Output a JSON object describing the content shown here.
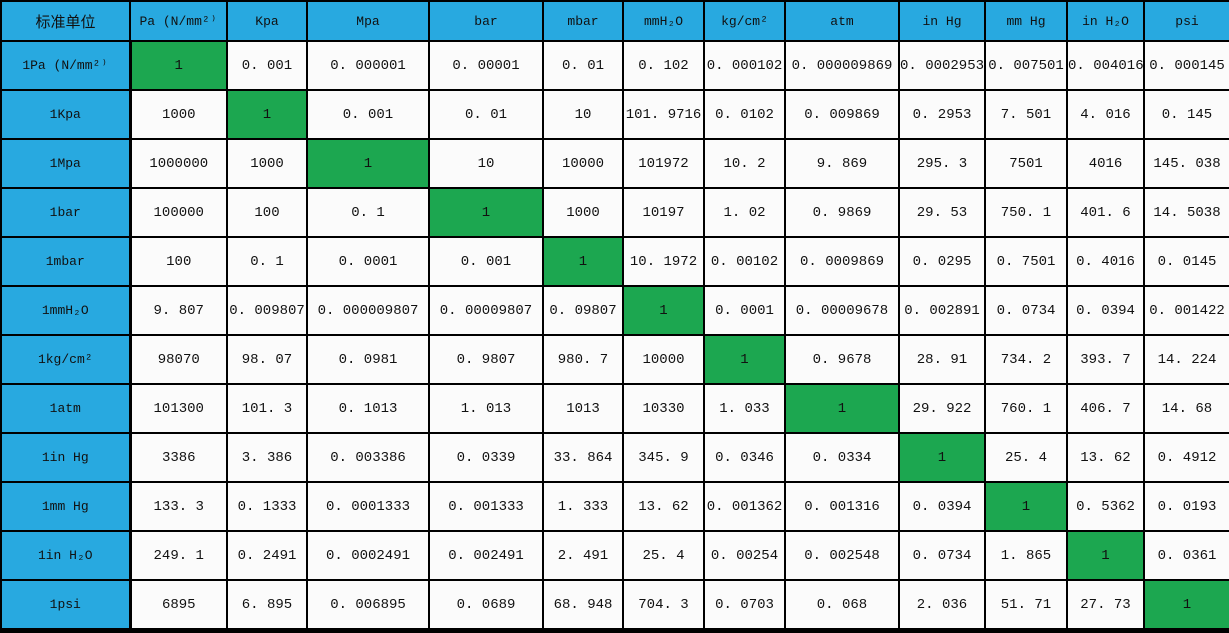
{
  "chart_data": {
    "type": "table",
    "columns": [
      "标准单位",
      "Pa (N/mm²⁾",
      "Kpa",
      "Mpa",
      "bar",
      "mbar",
      "mmH₂O",
      "kg/cm²",
      "atm",
      "in Hg",
      "mm Hg",
      "in H₂O",
      "psi"
    ],
    "rows": [
      {
        "label": "1Pa (N/mm²⁾",
        "highlight_index": 0,
        "values": [
          "1",
          "0. 001",
          "0. 000001",
          "0. 00001",
          "0. 01",
          "0. 102",
          "0. 000102",
          "0. 000009869",
          "0. 0002953",
          "0. 007501",
          "0. 004016",
          "0. 000145"
        ]
      },
      {
        "label": "1Kpa",
        "highlight_index": 1,
        "values": [
          "1000",
          "1",
          "0. 001",
          "0. 01",
          "10",
          "101. 9716",
          "0. 0102",
          "0. 009869",
          "0. 2953",
          "7. 501",
          "4. 016",
          "0. 145"
        ]
      },
      {
        "label": "1Mpa",
        "highlight_index": 2,
        "values": [
          "1000000",
          "1000",
          "1",
          "10",
          "10000",
          "101972",
          "10. 2",
          "9. 869",
          "295. 3",
          "7501",
          "4016",
          "145. 038"
        ]
      },
      {
        "label": "1bar",
        "highlight_index": 3,
        "values": [
          "100000",
          "100",
          "0. 1",
          "1",
          "1000",
          "10197",
          "1. 02",
          "0. 9869",
          "29. 53",
          "750. 1",
          "401. 6",
          "14. 5038"
        ]
      },
      {
        "label": "1mbar",
        "highlight_index": 4,
        "values": [
          "100",
          "0. 1",
          "0. 0001",
          "0. 001",
          "1",
          "10. 1972",
          "0. 00102",
          "0. 0009869",
          "0. 0295",
          "0. 7501",
          "0. 4016",
          "0. 0145"
        ]
      },
      {
        "label": "1mmH₂O",
        "highlight_index": 5,
        "values": [
          "9. 807",
          "0. 009807",
          "0. 000009807",
          "0. 00009807",
          "0. 09807",
          "1",
          "0. 0001",
          "0. 00009678",
          "0. 002891",
          "0. 0734",
          "0. 0394",
          "0. 001422"
        ]
      },
      {
        "label": "1kg/cm²",
        "highlight_index": 6,
        "values": [
          "98070",
          "98. 07",
          "0. 0981",
          "0. 9807",
          "980. 7",
          "10000",
          "1",
          "0. 9678",
          "28. 91",
          "734. 2",
          "393. 7",
          "14. 224"
        ]
      },
      {
        "label": "1atm",
        "highlight_index": 7,
        "values": [
          "101300",
          "101. 3",
          "0. 1013",
          "1. 013",
          "1013",
          "10330",
          "1. 033",
          "1",
          "29. 922",
          "760. 1",
          "406. 7",
          "14. 68"
        ]
      },
      {
        "label": "1in Hg",
        "highlight_index": 8,
        "values": [
          "3386",
          "3. 386",
          "0. 003386",
          "0. 0339",
          "33. 864",
          "345. 9",
          "0. 0346",
          "0. 0334",
          "1",
          "25. 4",
          "13. 62",
          "0. 4912"
        ]
      },
      {
        "label": "1mm Hg",
        "highlight_index": 9,
        "values": [
          "133. 3",
          "0. 1333",
          "0. 0001333",
          "0. 001333",
          "1. 333",
          "13. 62",
          "0. 001362",
          "0. 001316",
          "0. 0394",
          "1",
          "0. 5362",
          "0. 0193"
        ]
      },
      {
        "label": "1in H₂O",
        "highlight_index": 10,
        "values": [
          "249. 1",
          "0. 2491",
          "0. 0002491",
          "0. 002491",
          "2. 491",
          "25. 4",
          "0. 00254",
          "0. 002548",
          "0. 0734",
          "1. 865",
          "1",
          "0. 0361"
        ]
      },
      {
        "label": "1psi",
        "highlight_index": 11,
        "values": [
          "6895",
          "6. 895",
          "0. 006895",
          "0. 0689",
          "68. 948",
          "704. 3",
          "0. 0703",
          "0. 068",
          "2. 036",
          "51. 71",
          "27. 73",
          "1"
        ]
      }
    ],
    "colors": {
      "header_bg": "#28A9E0",
      "highlight_bg": "#1CA750",
      "cell_bg": "#FBFBFB",
      "border": "#000000",
      "text": "#111111"
    },
    "layout_hints": {
      "legend": "off",
      "grid": "full black cell borders",
      "highlight_rule": "diagonal identity cells (value 1) are green"
    }
  }
}
